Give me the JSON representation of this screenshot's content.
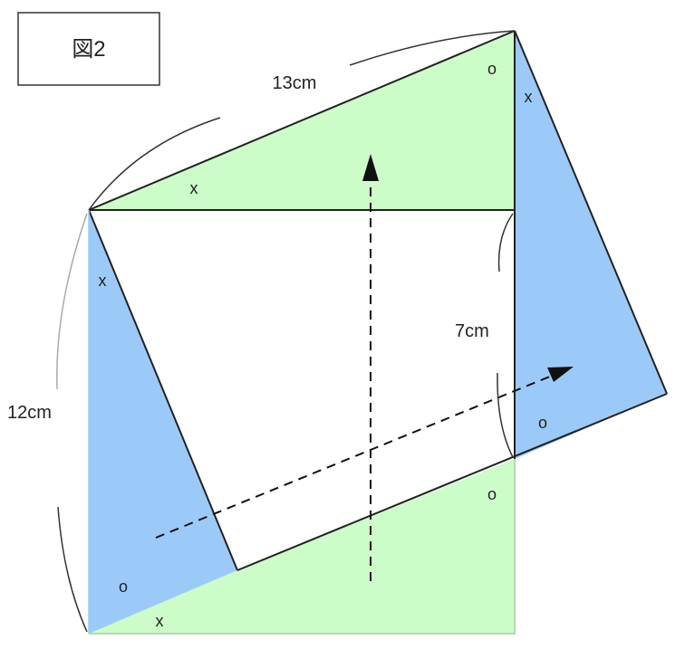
{
  "title_box": {
    "label": "図2"
  },
  "dimensions": {
    "top_edge": "13cm",
    "left_side": "12cm",
    "right_segment": "7cm"
  },
  "angle_marks": {
    "x_top_triangle": "x",
    "o_top_right": "o",
    "x_right_strip": "x",
    "x_left_strip": "x",
    "o_right_lower": "o",
    "o_bottom_right": "o",
    "o_bottom_left": "o",
    "x_bottom": "x"
  },
  "colors": {
    "green_fill": "#ccfcc8",
    "blue_fill": "#9ccaf8",
    "outline": "#222222",
    "light_edge": "#b8d8b8",
    "arc": "#333333"
  }
}
